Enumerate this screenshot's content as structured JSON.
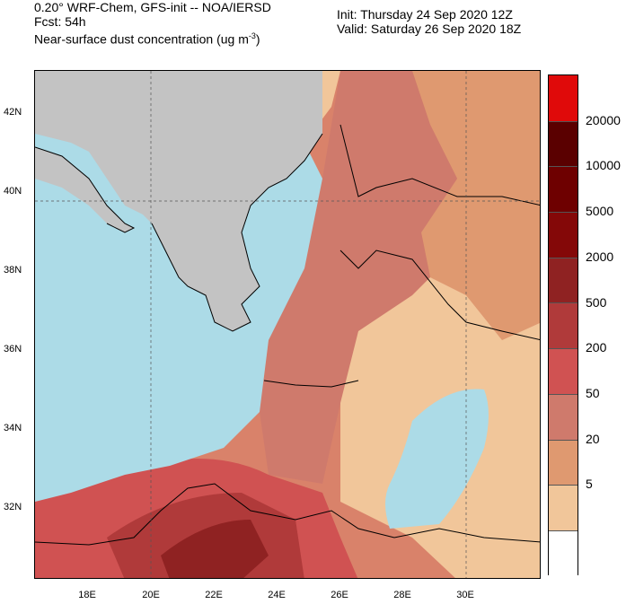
{
  "header": {
    "line1": "0.20° WRF-Chem, GFS-init -- NOA/IERSD",
    "line2": "Fcst: 54h",
    "line3": "Near-surface dust concentration (ug m",
    "line3_sup": "-3",
    "line3_end": ")",
    "init": "Init: Thursday 24 Sep 2020   12Z",
    "valid": "Valid: Saturday 26 Sep 2020   18Z"
  },
  "axes": {
    "lat_labels": [
      "42N",
      "40N",
      "38N",
      "36N",
      "34N",
      "32N"
    ],
    "lon_labels": [
      "18E",
      "20E",
      "22E",
      "24E",
      "26E",
      "28E",
      "30E"
    ]
  },
  "colorbar": {
    "colors": [
      "#e00a0a",
      "#5a0000",
      "#6e0000",
      "#840808",
      "#8f2222",
      "#b03a3a",
      "#d05252",
      "#cf7a6c",
      "#df9970",
      "#f1c69a",
      "#ffffff"
    ],
    "labels": [
      "20000",
      "10000",
      "5000",
      "2000",
      "500",
      "200",
      "50",
      "20",
      "5"
    ]
  },
  "map_colors": {
    "sea": "#acdbe7",
    "land": "#c3c3c3"
  }
}
